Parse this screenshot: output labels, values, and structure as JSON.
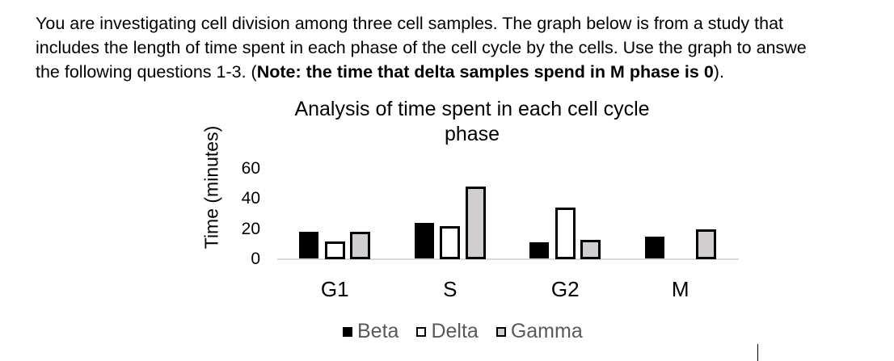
{
  "intro": {
    "line1": "You are investigating cell division among three cell samples. The graph below is from a study that",
    "line2": "includes the length of time spent in each phase of the cell cycle by the cells. Use the graph to answe",
    "line3_prefix": "the following questions 1-3. (",
    "line3_bold": "Note: the time that delta samples spend in M phase is 0",
    "line3_suffix": ")."
  },
  "chart_data": {
    "type": "bar",
    "title": "Analysis of time spent in each cell cycle phase",
    "title_lines": [
      "Analysis of time spent in each cell cycle",
      "phase"
    ],
    "xlabel": "",
    "ylabel": "Time (minutes)",
    "ylim": [
      0,
      60
    ],
    "yticks": [
      "60",
      "40",
      "20",
      "0"
    ],
    "grid": false,
    "legend_position": "bottom",
    "categories": [
      "G1",
      "S",
      "G2",
      "M"
    ],
    "series": [
      {
        "name": "Beta",
        "color": "#000000",
        "values": [
          18,
          24,
          11,
          15
        ]
      },
      {
        "name": "Delta",
        "color": "#ffffff",
        "values": [
          12,
          22,
          34,
          0
        ]
      },
      {
        "name": "Gamma",
        "color": "#d0cece",
        "values": [
          18,
          48,
          13,
          20
        ]
      }
    ]
  }
}
